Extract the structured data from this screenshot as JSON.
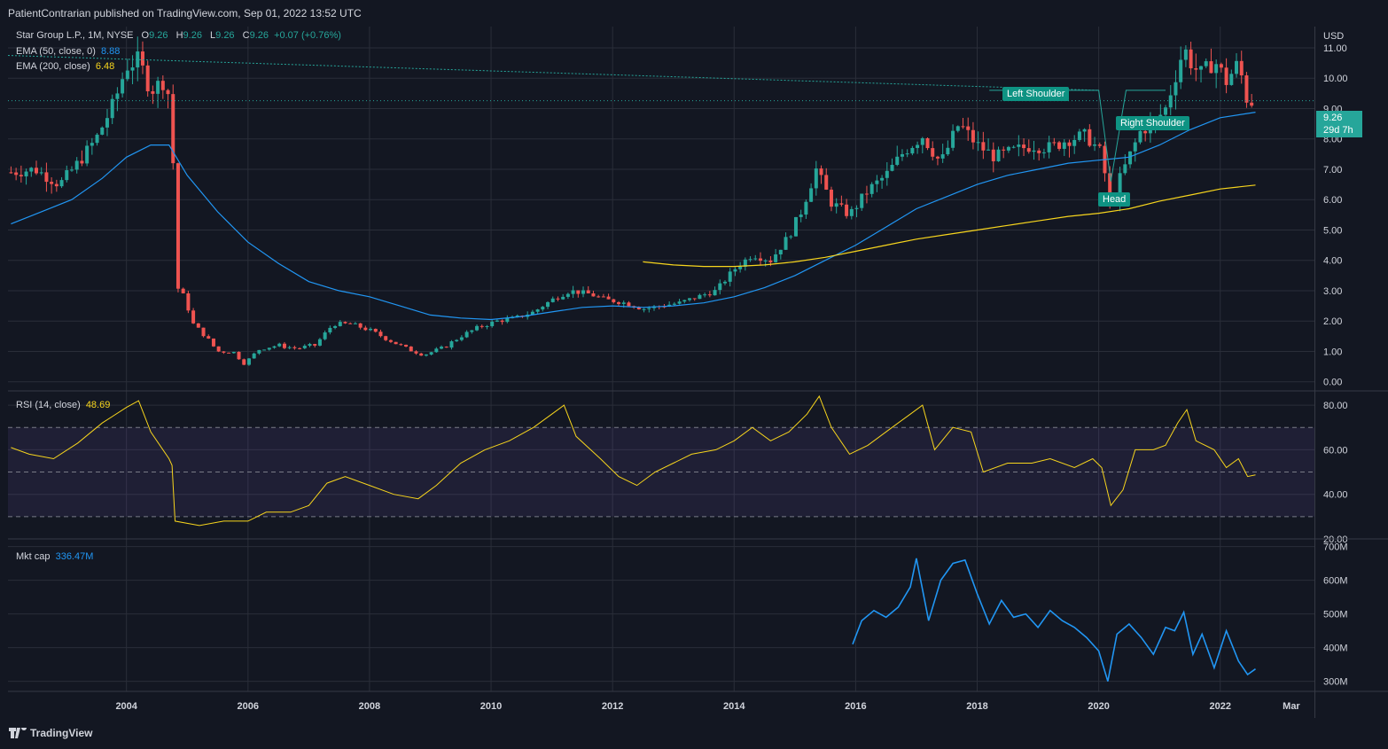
{
  "header": {
    "publisher_text": "PatientContrarian published on TradingView.com, Sep 01, 2022 13:52 UTC"
  },
  "main_legend": {
    "symbol": "Star Group L.P., 1M, NYSE",
    "o_label": "O",
    "o_value": "9.26",
    "h_label": "H",
    "h_value": "9.26",
    "l_label": "L",
    "l_value": "9.26",
    "c_label": "C",
    "c_value": "9.26",
    "change": "+0.07 (+0.76%)"
  },
  "ema50_legend": {
    "label": "EMA (50, close, 0)",
    "value": "8.88"
  },
  "ema200_legend": {
    "label": "EMA (200, close)",
    "value": "6.48"
  },
  "rsi_legend": {
    "label": "RSI (14, close)",
    "value": "48.69"
  },
  "mktcap_legend": {
    "label": "Mkt cap",
    "value": "336.47M"
  },
  "annotations": {
    "left_shoulder": "Left Shoulder",
    "right_shoulder": "Right Shoulder",
    "head": "Head"
  },
  "price_tag": {
    "price": "9.26",
    "countdown": "29d 7h"
  },
  "branding": {
    "logo_text": "TradingView"
  },
  "colors": {
    "background": "#131722",
    "grid": "#2a2e39",
    "up": "#26a69a",
    "down": "#ef5350",
    "ema50": "#2196f3",
    "ema200": "#f7d51d",
    "rsi": "#f7d51d",
    "mktcap": "#2196f3",
    "annotation_bg": "#0e9383"
  },
  "chart_data": [
    {
      "type": "candlestick",
      "title": "Star Group L.P., 1M, NYSE",
      "currency_label": "USD",
      "y_ticks": [
        "11.00",
        "10.00",
        "9.00",
        "8.00",
        "7.00",
        "6.00",
        "5.00",
        "4.00",
        "3.00",
        "2.00",
        "1.00",
        "0.00"
      ],
      "ylim": [
        -0.3,
        11.7
      ],
      "x_ticks": [
        "2004",
        "2006",
        "2008",
        "2010",
        "2012",
        "2014",
        "2016",
        "2018",
        "2020",
        "2022",
        "Mar"
      ],
      "x_tick_years": [
        2004,
        2006,
        2008,
        2010,
        2012,
        2014,
        2016,
        2018,
        2020,
        2022,
        2023.17
      ],
      "xlim": [
        2002.05,
        2023.55
      ],
      "close_series": [
        [
          2002.1,
          6.9
        ],
        [
          2002.5,
          7.0
        ],
        [
          2002.9,
          6.5
        ],
        [
          2003.2,
          7.2
        ],
        [
          2003.5,
          8.0
        ],
        [
          2003.8,
          9.2
        ],
        [
          2004.0,
          10.4
        ],
        [
          2004.2,
          10.6
        ],
        [
          2004.4,
          9.6
        ],
        [
          2004.6,
          9.9
        ],
        [
          2004.75,
          9.2
        ],
        [
          2004.8,
          3.2
        ],
        [
          2004.95,
          2.8
        ],
        [
          2005.1,
          1.9
        ],
        [
          2005.3,
          1.5
        ],
        [
          2005.5,
          1.0
        ],
        [
          2005.75,
          1.0
        ],
        [
          2005.95,
          0.6
        ],
        [
          2006.2,
          1.1
        ],
        [
          2006.5,
          1.2
        ],
        [
          2006.8,
          1.1
        ],
        [
          2007.1,
          1.2
        ],
        [
          2007.4,
          1.9
        ],
        [
          2007.7,
          1.9
        ],
        [
          2008.0,
          1.7
        ],
        [
          2008.3,
          1.4
        ],
        [
          2008.6,
          1.1
        ],
        [
          2008.9,
          0.9
        ],
        [
          2009.2,
          1.1
        ],
        [
          2009.5,
          1.5
        ],
        [
          2009.8,
          1.8
        ],
        [
          2010.1,
          2.0
        ],
        [
          2010.4,
          2.1
        ],
        [
          2010.7,
          2.3
        ],
        [
          2011.0,
          2.7
        ],
        [
          2011.3,
          3.0
        ],
        [
          2011.6,
          2.9
        ],
        [
          2011.9,
          2.7
        ],
        [
          2012.2,
          2.6
        ],
        [
          2012.5,
          2.4
        ],
        [
          2012.8,
          2.5
        ],
        [
          2013.1,
          2.6
        ],
        [
          2013.4,
          2.8
        ],
        [
          2013.7,
          3.0
        ],
        [
          2014.0,
          3.7
        ],
        [
          2014.3,
          4.2
        ],
        [
          2014.6,
          4.0
        ],
        [
          2014.9,
          4.8
        ],
        [
          2015.1,
          5.6
        ],
        [
          2015.35,
          7.0
        ],
        [
          2015.6,
          5.9
        ],
        [
          2015.9,
          5.5
        ],
        [
          2016.2,
          6.3
        ],
        [
          2016.5,
          6.8
        ],
        [
          2016.8,
          7.6
        ],
        [
          2017.1,
          8.1
        ],
        [
          2017.4,
          7.2
        ],
        [
          2017.7,
          8.5
        ],
        [
          2018.0,
          7.8
        ],
        [
          2018.3,
          7.4
        ],
        [
          2018.6,
          7.6
        ],
        [
          2018.9,
          7.8
        ],
        [
          2019.2,
          7.7
        ],
        [
          2019.5,
          8.0
        ],
        [
          2019.8,
          8.1
        ],
        [
          2020.05,
          7.5
        ],
        [
          2020.2,
          5.6
        ],
        [
          2020.35,
          6.7
        ],
        [
          2020.5,
          7.4
        ],
        [
          2020.7,
          8.3
        ],
        [
          2020.9,
          8.5
        ],
        [
          2021.1,
          9.0
        ],
        [
          2021.25,
          10.0
        ],
        [
          2021.4,
          11.0
        ],
        [
          2021.55,
          10.4
        ],
        [
          2021.7,
          10.1
        ],
        [
          2021.9,
          10.6
        ],
        [
          2022.1,
          9.9
        ],
        [
          2022.3,
          10.5
        ],
        [
          2022.45,
          9.2
        ],
        [
          2022.58,
          9.26
        ]
      ],
      "series": [
        {
          "name": "EMA (50, close, 0)",
          "points": [
            [
              2002.1,
              5.2
            ],
            [
              2002.6,
              5.6
            ],
            [
              2003.1,
              6.0
            ],
            [
              2003.6,
              6.7
            ],
            [
              2004.0,
              7.4
            ],
            [
              2004.4,
              7.8
            ],
            [
              2004.7,
              7.8
            ],
            [
              2005.0,
              6.8
            ],
            [
              2005.5,
              5.6
            ],
            [
              2006.0,
              4.6
            ],
            [
              2006.5,
              3.9
            ],
            [
              2007.0,
              3.3
            ],
            [
              2007.5,
              3.0
            ],
            [
              2008.0,
              2.8
            ],
            [
              2008.5,
              2.5
            ],
            [
              2009.0,
              2.2
            ],
            [
              2009.5,
              2.1
            ],
            [
              2010.0,
              2.05
            ],
            [
              2010.5,
              2.15
            ],
            [
              2011.0,
              2.3
            ],
            [
              2011.5,
              2.45
            ],
            [
              2012.0,
              2.5
            ],
            [
              2012.5,
              2.45
            ],
            [
              2013.0,
              2.5
            ],
            [
              2013.5,
              2.6
            ],
            [
              2014.0,
              2.8
            ],
            [
              2014.5,
              3.1
            ],
            [
              2015.0,
              3.5
            ],
            [
              2015.5,
              4.0
            ],
            [
              2016.0,
              4.5
            ],
            [
              2016.5,
              5.1
            ],
            [
              2017.0,
              5.7
            ],
            [
              2017.5,
              6.1
            ],
            [
              2018.0,
              6.5
            ],
            [
              2018.5,
              6.8
            ],
            [
              2019.0,
              7.0
            ],
            [
              2019.5,
              7.2
            ],
            [
              2020.0,
              7.3
            ],
            [
              2020.5,
              7.4
            ],
            [
              2021.0,
              7.8
            ],
            [
              2021.5,
              8.3
            ],
            [
              2022.0,
              8.7
            ],
            [
              2022.58,
              8.88
            ]
          ]
        },
        {
          "name": "EMA (200, close)",
          "points": [
            [
              2012.5,
              3.95
            ],
            [
              2013.0,
              3.85
            ],
            [
              2013.5,
              3.8
            ],
            [
              2014.0,
              3.8
            ],
            [
              2014.5,
              3.85
            ],
            [
              2015.0,
              3.95
            ],
            [
              2015.5,
              4.1
            ],
            [
              2016.0,
              4.3
            ],
            [
              2016.5,
              4.5
            ],
            [
              2017.0,
              4.7
            ],
            [
              2017.5,
              4.85
            ],
            [
              2018.0,
              5.0
            ],
            [
              2018.5,
              5.15
            ],
            [
              2019.0,
              5.3
            ],
            [
              2019.5,
              5.45
            ],
            [
              2020.0,
              5.55
            ],
            [
              2020.5,
              5.7
            ],
            [
              2021.0,
              5.95
            ],
            [
              2021.5,
              6.15
            ],
            [
              2022.0,
              6.35
            ],
            [
              2022.58,
              6.48
            ]
          ]
        }
      ]
    },
    {
      "type": "line",
      "title": "RSI (14, close)",
      "y_ticks": [
        "80.00",
        "60.00",
        "40.00",
        "20.00"
      ],
      "ylim": [
        20,
        86
      ],
      "bands": [
        70,
        50,
        30
      ],
      "series": [
        {
          "name": "RSI (14, close)",
          "points": [
            [
              2002.1,
              61
            ],
            [
              2002.4,
              58
            ],
            [
              2002.8,
              56
            ],
            [
              2003.2,
              63
            ],
            [
              2003.6,
              72
            ],
            [
              2004.0,
              79
            ],
            [
              2004.2,
              82
            ],
            [
              2004.4,
              68
            ],
            [
              2004.7,
              56
            ],
            [
              2004.75,
              53
            ],
            [
              2004.8,
              28
            ],
            [
              2005.2,
              26
            ],
            [
              2005.6,
              28
            ],
            [
              2006.0,
              28
            ],
            [
              2006.3,
              32
            ],
            [
              2006.7,
              32
            ],
            [
              2007.0,
              35
            ],
            [
              2007.3,
              45
            ],
            [
              2007.6,
              48
            ],
            [
              2008.0,
              44
            ],
            [
              2008.4,
              40
            ],
            [
              2008.8,
              38
            ],
            [
              2009.1,
              44
            ],
            [
              2009.5,
              54
            ],
            [
              2009.9,
              60
            ],
            [
              2010.3,
              64
            ],
            [
              2010.7,
              70
            ],
            [
              2011.0,
              76
            ],
            [
              2011.2,
              80
            ],
            [
              2011.4,
              66
            ],
            [
              2011.8,
              56
            ],
            [
              2012.1,
              48
            ],
            [
              2012.4,
              44
            ],
            [
              2012.7,
              50
            ],
            [
              2013.0,
              54
            ],
            [
              2013.3,
              58
            ],
            [
              2013.7,
              60
            ],
            [
              2014.0,
              64
            ],
            [
              2014.3,
              70
            ],
            [
              2014.6,
              64
            ],
            [
              2014.9,
              68
            ],
            [
              2015.2,
              76
            ],
            [
              2015.4,
              84
            ],
            [
              2015.6,
              70
            ],
            [
              2015.9,
              58
            ],
            [
              2016.2,
              62
            ],
            [
              2016.6,
              70
            ],
            [
              2016.9,
              76
            ],
            [
              2017.1,
              80
            ],
            [
              2017.3,
              60
            ],
            [
              2017.6,
              70
            ],
            [
              2017.9,
              68
            ],
            [
              2018.1,
              50
            ],
            [
              2018.5,
              54
            ],
            [
              2018.9,
              54
            ],
            [
              2019.2,
              56
            ],
            [
              2019.6,
              52
            ],
            [
              2019.9,
              56
            ],
            [
              2020.05,
              52
            ],
            [
              2020.2,
              35
            ],
            [
              2020.4,
              42
            ],
            [
              2020.6,
              60
            ],
            [
              2020.9,
              60
            ],
            [
              2021.1,
              62
            ],
            [
              2021.3,
              72
            ],
            [
              2021.45,
              78
            ],
            [
              2021.6,
              64
            ],
            [
              2021.9,
              60
            ],
            [
              2022.1,
              52
            ],
            [
              2022.3,
              56
            ],
            [
              2022.45,
              48
            ],
            [
              2022.58,
              48.69
            ]
          ]
        }
      ]
    },
    {
      "type": "line",
      "title": "Mkt cap",
      "y_ticks": [
        "700M",
        "600M",
        "500M",
        "400M",
        "300M"
      ],
      "ylim": [
        270,
        720
      ],
      "series": [
        {
          "name": "Mkt cap",
          "points": [
            [
              2015.95,
              410
            ],
            [
              2016.1,
              480
            ],
            [
              2016.3,
              510
            ],
            [
              2016.5,
              490
            ],
            [
              2016.7,
              520
            ],
            [
              2016.9,
              580
            ],
            [
              2017.0,
              665
            ],
            [
              2017.2,
              480
            ],
            [
              2017.4,
              600
            ],
            [
              2017.6,
              650
            ],
            [
              2017.8,
              660
            ],
            [
              2018.0,
              560
            ],
            [
              2018.2,
              470
            ],
            [
              2018.4,
              540
            ],
            [
              2018.6,
              490
            ],
            [
              2018.8,
              500
            ],
            [
              2019.0,
              460
            ],
            [
              2019.2,
              510
            ],
            [
              2019.4,
              480
            ],
            [
              2019.6,
              460
            ],
            [
              2019.8,
              430
            ],
            [
              2020.0,
              390
            ],
            [
              2020.15,
              300
            ],
            [
              2020.3,
              440
            ],
            [
              2020.5,
              470
            ],
            [
              2020.7,
              430
            ],
            [
              2020.9,
              380
            ],
            [
              2021.1,
              460
            ],
            [
              2021.25,
              450
            ],
            [
              2021.4,
              505
            ],
            [
              2021.55,
              380
            ],
            [
              2021.7,
              440
            ],
            [
              2021.9,
              340
            ],
            [
              2022.1,
              450
            ],
            [
              2022.3,
              360
            ],
            [
              2022.45,
              320
            ],
            [
              2022.58,
              336.47
            ]
          ]
        }
      ]
    }
  ]
}
